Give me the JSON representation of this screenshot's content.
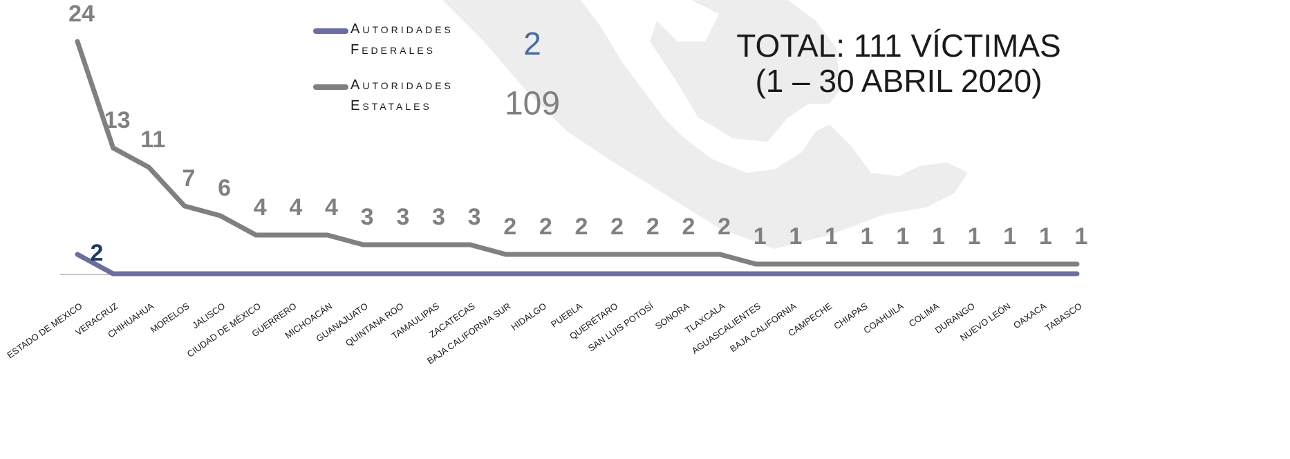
{
  "chart_data": {
    "type": "line",
    "title": [
      "TOTAL: 111 VÍCTIMAS",
      "(1 – 30 ABRIL 2020)"
    ],
    "categories": [
      "ESTADO DE MEXICO",
      "VERACRUZ",
      "CHIHUAHUA",
      "MORELOS",
      "JALISCO",
      "CIUDAD DE MÉXICO",
      "GUERRERO",
      "MICHOACÁN",
      "GUANAJUATO",
      "QUINTANA ROO",
      "TAMAULIPAS",
      "ZACATECAS",
      "BAJA CALIFORNIA SUR",
      "HIDALGO",
      "PUEBLA",
      "QUERÉTARO",
      "SAN LUIS POTOSÍ",
      "SONORA",
      "TLAXCALA",
      "AGUASCALIENTES",
      "BAJA CALIFORNIA",
      "CAMPECHE",
      "CHIAPAS",
      "COAHUILA",
      "COLIMA",
      "DURANGO",
      "NUEVO LEÓN",
      "OAXACA",
      "TABASCO"
    ],
    "series": [
      {
        "name": "Autoridades Federales",
        "color": "#6b6e9e",
        "label_color": "#1f3864",
        "total_color": "#4a6a9a",
        "total": 2,
        "values": [
          2,
          0,
          0,
          0,
          0,
          0,
          0,
          0,
          0,
          0,
          0,
          0,
          0,
          0,
          0,
          0,
          0,
          0,
          0,
          0,
          0,
          0,
          0,
          0,
          0,
          0,
          0,
          0,
          0
        ],
        "value_labels": [
          "2",
          null,
          null,
          null,
          null,
          null,
          null,
          null,
          null,
          null,
          null,
          null,
          null,
          null,
          null,
          null,
          null,
          null,
          null,
          null,
          null,
          null,
          null,
          null,
          null,
          null,
          null,
          null,
          null
        ]
      },
      {
        "name": "Autoridades Estatales",
        "color": "#808080",
        "label_color": "#808080",
        "total_color": "#808080",
        "total": 109,
        "values": [
          24,
          13,
          11,
          7,
          6,
          4,
          4,
          4,
          3,
          3,
          3,
          3,
          2,
          2,
          2,
          2,
          2,
          2,
          2,
          1,
          1,
          1,
          1,
          1,
          1,
          1,
          1,
          1,
          1
        ]
      }
    ],
    "ylim": [
      0,
      24
    ]
  }
}
